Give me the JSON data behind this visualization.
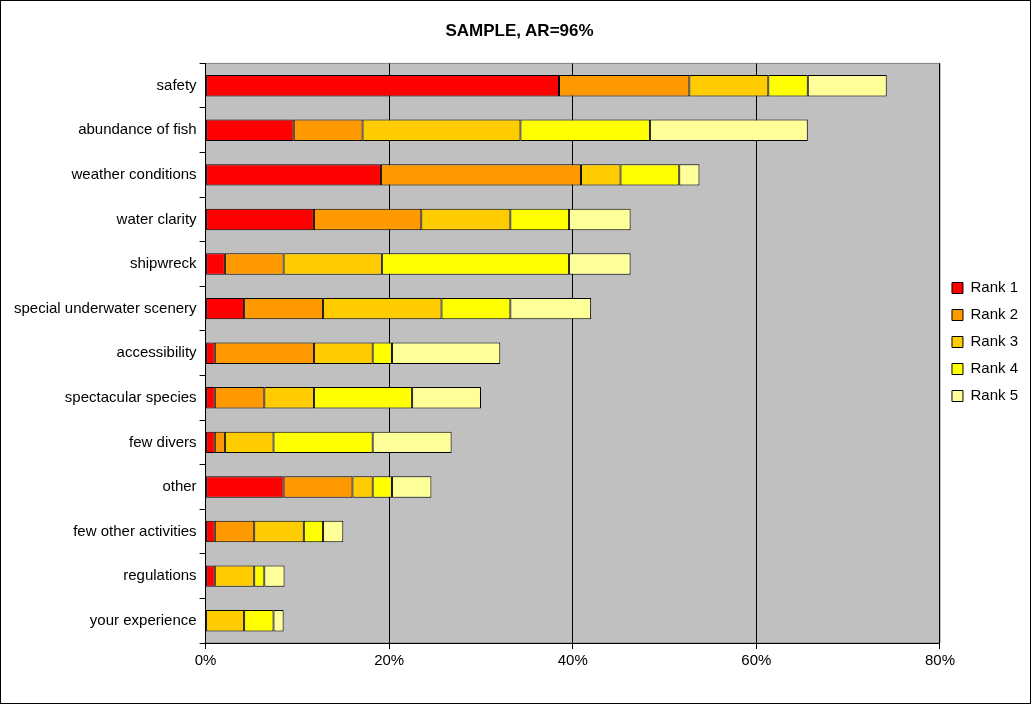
{
  "chart_data": {
    "type": "bar",
    "orientation": "horizontal",
    "stacked": true,
    "title": "SAMPLE, AR=96%",
    "categories": [
      "safety",
      "abundance of fish",
      "weather conditions",
      "water clarity",
      "shipwreck",
      "special underwater scenery",
      "accessibility",
      "spectacular species",
      "few divers",
      "other",
      "few other activities",
      "regulations",
      "your experience"
    ],
    "series": [
      {
        "name": "Rank 1",
        "color": "#ff0000",
        "values": [
          38.5,
          9.6,
          19.1,
          11.8,
          2.1,
          4.2,
          1.0,
          1.0,
          1.0,
          8.5,
          1.0,
          1.0,
          0
        ]
      },
      {
        "name": "Rank 2",
        "color": "#ff9900",
        "values": [
          14.2,
          7.5,
          21.8,
          11.7,
          6.4,
          8.6,
          10.8,
          5.4,
          1.1,
          7.5,
          4.3,
          0,
          0
        ]
      },
      {
        "name": "Rank 3",
        "color": "#ffcc00",
        "values": [
          8.6,
          17.2,
          4.3,
          9.7,
          10.7,
          12.9,
          6.4,
          5.4,
          5.3,
          2.2,
          5.4,
          4.3,
          4.2
        ]
      },
      {
        "name": "Rank 4",
        "color": "#ffff00",
        "values": [
          4.3,
          14.1,
          6.4,
          6.4,
          20.4,
          7.5,
          2.1,
          10.7,
          10.8,
          2.1,
          2.1,
          1.1,
          3.2
        ]
      },
      {
        "name": "Rank 5",
        "color": "#ffff99",
        "values": [
          8.6,
          17.2,
          2.2,
          6.7,
          6.7,
          8.8,
          11.8,
          7.5,
          8.6,
          4.3,
          2.2,
          2.2,
          1.1
        ]
      }
    ],
    "xlim": [
      0,
      80
    ],
    "xticks": [
      {
        "value": 0,
        "label": "0%"
      },
      {
        "value": 20,
        "label": "20%"
      },
      {
        "value": 40,
        "label": "40%"
      },
      {
        "value": 60,
        "label": "60%"
      },
      {
        "value": 80,
        "label": "80%"
      }
    ],
    "grid": "x",
    "legend": "right"
  }
}
